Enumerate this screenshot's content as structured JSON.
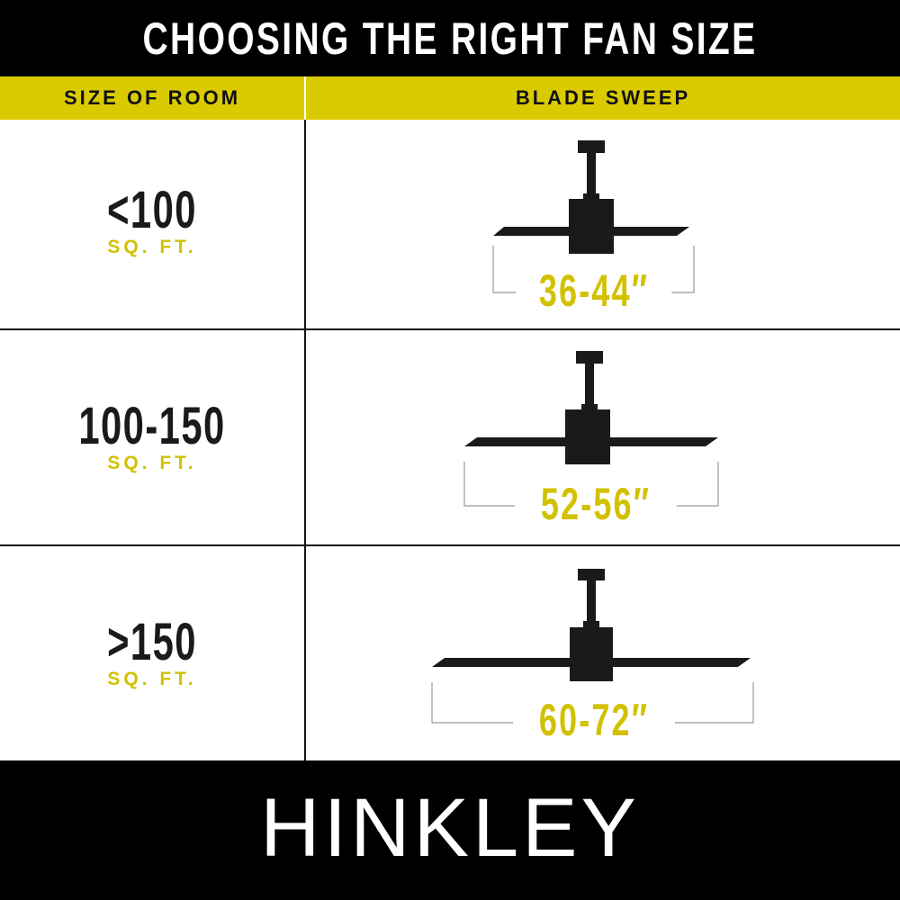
{
  "title": "CHOOSING THE RIGHT FAN SIZE",
  "columns": {
    "room": "SIZE OF ROOM",
    "sweep": "BLADE SWEEP"
  },
  "rows": [
    {
      "room": "<100",
      "unit": "SQ. FT.",
      "sweep": "36-44″"
    },
    {
      "room": "100-150",
      "unit": "SQ. FT.",
      "sweep": "52-56″"
    },
    {
      "room": ">150",
      "unit": "SQ. FT.",
      "sweep": "60-72″"
    }
  ],
  "brand": "HINKLEY",
  "colors": {
    "accent_yellow": "#dacb00",
    "text_yellow": "#d2c100",
    "dark": "#1a1a1a"
  },
  "icons": [
    "ceiling-fan-small",
    "ceiling-fan-medium",
    "ceiling-fan-large"
  ]
}
